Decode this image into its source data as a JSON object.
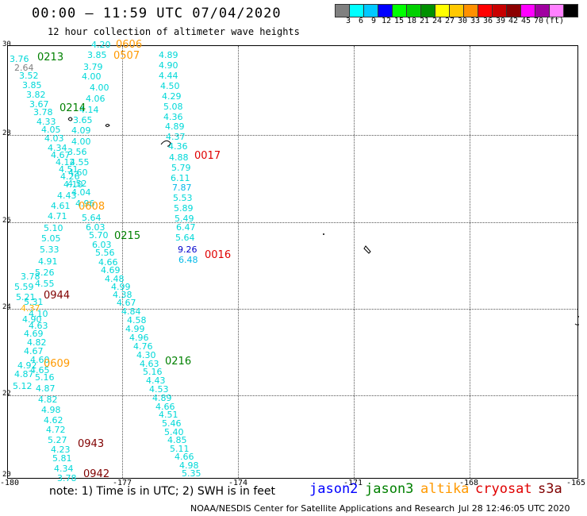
{
  "header": {
    "title": "00:00 — 11:59 UTC 07/04/2020",
    "subtitle": "12 hour collection of altimeter wave heights"
  },
  "legend": {
    "colors": [
      "#808080",
      "#00ffff",
      "#00c8ff",
      "#0000ff",
      "#00ff00",
      "#00d000",
      "#009000",
      "#ffff00",
      "#ffc800",
      "#ff9000",
      "#ff0000",
      "#c80000",
      "#8c0000",
      "#ff00ff",
      "#a000a0",
      "#ff80ff",
      "#000000"
    ],
    "labels": [
      "3",
      "6",
      "9",
      "12",
      "15",
      "18",
      "21",
      "24",
      "27",
      "30",
      "33",
      "36",
      "39",
      "42",
      "45",
      "70",
      "(ft)"
    ]
  },
  "axes": {
    "lat_labels": [
      "30",
      "28",
      "26",
      "24",
      "22",
      "20"
    ],
    "lon_labels": [
      "-180",
      "-177",
      "-174",
      "-171",
      "-168",
      "-165"
    ]
  },
  "colors": {
    "cyan_reading": "#00d8d8",
    "dark_green_pass": "#008000",
    "orange_pass": "#ff9900",
    "red_pass": "#e00000",
    "dark_red_pass": "#800000",
    "blue_reading": "#0000cc",
    "jason2": "#0000ff",
    "jason3": "#008000",
    "altika": "#ff9900",
    "cryosat": "#e00000",
    "s3a": "#800000"
  },
  "pass_labels": [
    {
      "text": "0606",
      "color": "#ff9900"
    },
    {
      "text": "0507",
      "color": "#ff9900"
    },
    {
      "text": "0213",
      "color": "#008000"
    },
    {
      "text": "0214",
      "color": "#008000"
    },
    {
      "text": "0017",
      "color": "#e00000"
    },
    {
      "text": "0608",
      "color": "#ff9900"
    },
    {
      "text": "0215",
      "color": "#008000"
    },
    {
      "text": "0016",
      "color": "#e00000"
    },
    {
      "text": "0944",
      "color": "#800000"
    },
    {
      "text": "0609",
      "color": "#ff9900"
    },
    {
      "text": "0216",
      "color": "#008000"
    },
    {
      "text": "0943",
      "color": "#800000"
    },
    {
      "text": "0942",
      "color": "#800000"
    }
  ],
  "readings": [
    {
      "v": "4.20",
      "c": "#00d8d8"
    },
    {
      "v": "3.85",
      "c": "#00d8d8"
    },
    {
      "v": "3.79",
      "c": "#00d8d8"
    },
    {
      "v": "4.00",
      "c": "#00d8d8"
    },
    {
      "v": "4.00",
      "c": "#00d8d8"
    },
    {
      "v": "4.06",
      "c": "#00d8d8"
    },
    {
      "v": "4.14",
      "c": "#00d8d8"
    },
    {
      "v": "3.65",
      "c": "#00d8d8"
    },
    {
      "v": "4.09",
      "c": "#00d8d8"
    },
    {
      "v": "4.00",
      "c": "#00d8d8"
    },
    {
      "v": "3.56",
      "c": "#00d8d8"
    },
    {
      "v": "4.55",
      "c": "#00d8d8"
    },
    {
      "v": "4.60",
      "c": "#00d8d8"
    },
    {
      "v": "4.52",
      "c": "#00d8d8"
    },
    {
      "v": "4.04",
      "c": "#00d8d8"
    },
    {
      "v": "4.96",
      "c": "#00d8d8"
    },
    {
      "v": "5.64",
      "c": "#00d8d8"
    },
    {
      "v": "6.03",
      "c": "#00d8d8"
    },
    {
      "v": "5.70",
      "c": "#00d8d8"
    },
    {
      "v": "6.03",
      "c": "#00d8d8"
    },
    {
      "v": "5.56",
      "c": "#00d8d8"
    },
    {
      "v": "4.66",
      "c": "#00d8d8"
    },
    {
      "v": "4.69",
      "c": "#00d8d8"
    },
    {
      "v": "4.48",
      "c": "#00d8d8"
    },
    {
      "v": "4.99",
      "c": "#00d8d8"
    },
    {
      "v": "4.38",
      "c": "#00d8d8"
    },
    {
      "v": "4.67",
      "c": "#00d8d8"
    },
    {
      "v": "4.84",
      "c": "#00d8d8"
    },
    {
      "v": "4.58",
      "c": "#00d8d8"
    },
    {
      "v": "4.99",
      "c": "#00d8d8"
    },
    {
      "v": "4.96",
      "c": "#00d8d8"
    },
    {
      "v": "4.76",
      "c": "#00d8d8"
    },
    {
      "v": "4.30",
      "c": "#00d8d8"
    },
    {
      "v": "4.63",
      "c": "#00d8d8"
    },
    {
      "v": "5.16",
      "c": "#00d8d8"
    },
    {
      "v": "4.43",
      "c": "#00d8d8"
    },
    {
      "v": "4.53",
      "c": "#00d8d8"
    },
    {
      "v": "4.89",
      "c": "#00d8d8"
    },
    {
      "v": "4.66",
      "c": "#00d8d8"
    },
    {
      "v": "4.51",
      "c": "#00d8d8"
    },
    {
      "v": "5.46",
      "c": "#00d8d8"
    },
    {
      "v": "5.40",
      "c": "#00d8d8"
    },
    {
      "v": "4.85",
      "c": "#00d8d8"
    },
    {
      "v": "5.11",
      "c": "#00d8d8"
    },
    {
      "v": "4.66",
      "c": "#00d8d8"
    },
    {
      "v": "4.98",
      "c": "#00d8d8"
    },
    {
      "v": "5.35",
      "c": "#00d8d8"
    },
    {
      "v": "4.89",
      "c": "#00d8d8"
    },
    {
      "v": "4.90",
      "c": "#00d8d8"
    },
    {
      "v": "4.44",
      "c": "#00d8d8"
    },
    {
      "v": "4.50",
      "c": "#00d8d8"
    },
    {
      "v": "4.29",
      "c": "#00d8d8"
    },
    {
      "v": "5.08",
      "c": "#00d8d8"
    },
    {
      "v": "4.36",
      "c": "#00d8d8"
    },
    {
      "v": "4.89",
      "c": "#00d8d8"
    },
    {
      "v": "4.37",
      "c": "#00d8d8"
    },
    {
      "v": "4.36",
      "c": "#00d8d8"
    },
    {
      "v": "4.88",
      "c": "#00d8d8"
    },
    {
      "v": "5.79",
      "c": "#00d8d8"
    },
    {
      "v": "6.11",
      "c": "#00d8d8"
    },
    {
      "v": "7.87",
      "c": "#00b8e8"
    },
    {
      "v": "5.53",
      "c": "#00d8d8"
    },
    {
      "v": "5.89",
      "c": "#00d8d8"
    },
    {
      "v": "5.49",
      "c": "#00d8d8"
    },
    {
      "v": "6.47",
      "c": "#00d8d8"
    },
    {
      "v": "5.64",
      "c": "#00d8d8"
    },
    {
      "v": "9.26",
      "c": "#0000cc"
    },
    {
      "v": "6.48",
      "c": "#00b8e8"
    },
    {
      "v": "3.76",
      "c": "#00d8d8"
    },
    {
      "v": "2.64",
      "c": "#808080"
    },
    {
      "v": "3.52",
      "c": "#00d8d8"
    },
    {
      "v": "3.85",
      "c": "#00d8d8"
    },
    {
      "v": "3.82",
      "c": "#00d8d8"
    },
    {
      "v": "3.67",
      "c": "#00d8d8"
    },
    {
      "v": "3.78",
      "c": "#00d8d8"
    },
    {
      "v": "4.33",
      "c": "#00d8d8"
    },
    {
      "v": "4.05",
      "c": "#00d8d8"
    },
    {
      "v": "4.03",
      "c": "#00d8d8"
    },
    {
      "v": "4.34",
      "c": "#00d8d8"
    },
    {
      "v": "4.67",
      "c": "#00d8d8"
    },
    {
      "v": "4.12",
      "c": "#00d8d8"
    },
    {
      "v": "4.51",
      "c": "#00d8d8"
    },
    {
      "v": "4.26",
      "c": "#00d8d8"
    },
    {
      "v": "4.10",
      "c": "#00d8d8"
    },
    {
      "v": "4.43",
      "c": "#00d8d8"
    },
    {
      "v": "4.61",
      "c": "#00d8d8"
    },
    {
      "v": "4.71",
      "c": "#00d8d8"
    },
    {
      "v": "5.10",
      "c": "#00d8d8"
    },
    {
      "v": "5.05",
      "c": "#00d8d8"
    },
    {
      "v": "5.33",
      "c": "#00d8d8"
    },
    {
      "v": "4.91",
      "c": "#00d8d8"
    },
    {
      "v": "5.26",
      "c": "#00d8d8"
    },
    {
      "v": "4.55",
      "c": "#00d8d8"
    },
    {
      "v": "3.78",
      "c": "#00d8d8"
    },
    {
      "v": "5.59",
      "c": "#00d8d8"
    },
    {
      "v": "5.21",
      "c": "#00d8d8"
    },
    {
      "v": "5.31",
      "c": "#00d8d8"
    },
    {
      "v": "4.37",
      "c": "#ffb000"
    },
    {
      "v": "4.10",
      "c": "#00d8d8"
    },
    {
      "v": "4.90",
      "c": "#00d8d8"
    },
    {
      "v": "4.63",
      "c": "#00d8d8"
    },
    {
      "v": "4.69",
      "c": "#00d8d8"
    },
    {
      "v": "4.82",
      "c": "#00d8d8"
    },
    {
      "v": "4.67",
      "c": "#00d8d8"
    },
    {
      "v": "4.60",
      "c": "#00d8d8"
    },
    {
      "v": "4.92",
      "c": "#00d8d8"
    },
    {
      "v": "4.65",
      "c": "#00d8d8"
    },
    {
      "v": "4.87",
      "c": "#00d8d8"
    },
    {
      "v": "5.16",
      "c": "#00d8d8"
    },
    {
      "v": "5.12",
      "c": "#00d8d8"
    },
    {
      "v": "4.87",
      "c": "#00d8d8"
    },
    {
      "v": "4.82",
      "c": "#00d8d8"
    },
    {
      "v": "4.98",
      "c": "#00d8d8"
    },
    {
      "v": "4.62",
      "c": "#00d8d8"
    },
    {
      "v": "4.72",
      "c": "#00d8d8"
    },
    {
      "v": "5.27",
      "c": "#00d8d8"
    },
    {
      "v": "4.23",
      "c": "#00d8d8"
    },
    {
      "v": "5.81",
      "c": "#00d8d8"
    },
    {
      "v": "4.34",
      "c": "#00d8d8"
    },
    {
      "v": "3.78",
      "c": "#00d8d8"
    },
    {
      "v": "4.21",
      "c": "#00d8d8"
    },
    {
      "v": "3.89",
      "c": "#00d8d8"
    }
  ],
  "footer": {
    "note": "note:  1) Time is in UTC;  2) SWH is in feet",
    "satellites": [
      {
        "name": "jason2",
        "color": "#0000ff"
      },
      {
        "name": "jason3",
        "color": "#008000"
      },
      {
        "name": "altika",
        "color": "#ff9900"
      },
      {
        "name": "cryosat",
        "color": "#e00000"
      },
      {
        "name": "s3a",
        "color": "#800000"
      }
    ],
    "credit": "NOAA/NESDIS Center for Satellite Applications and Research",
    "timestamp": "Jul 28 12:46:05 UTC 2020"
  }
}
